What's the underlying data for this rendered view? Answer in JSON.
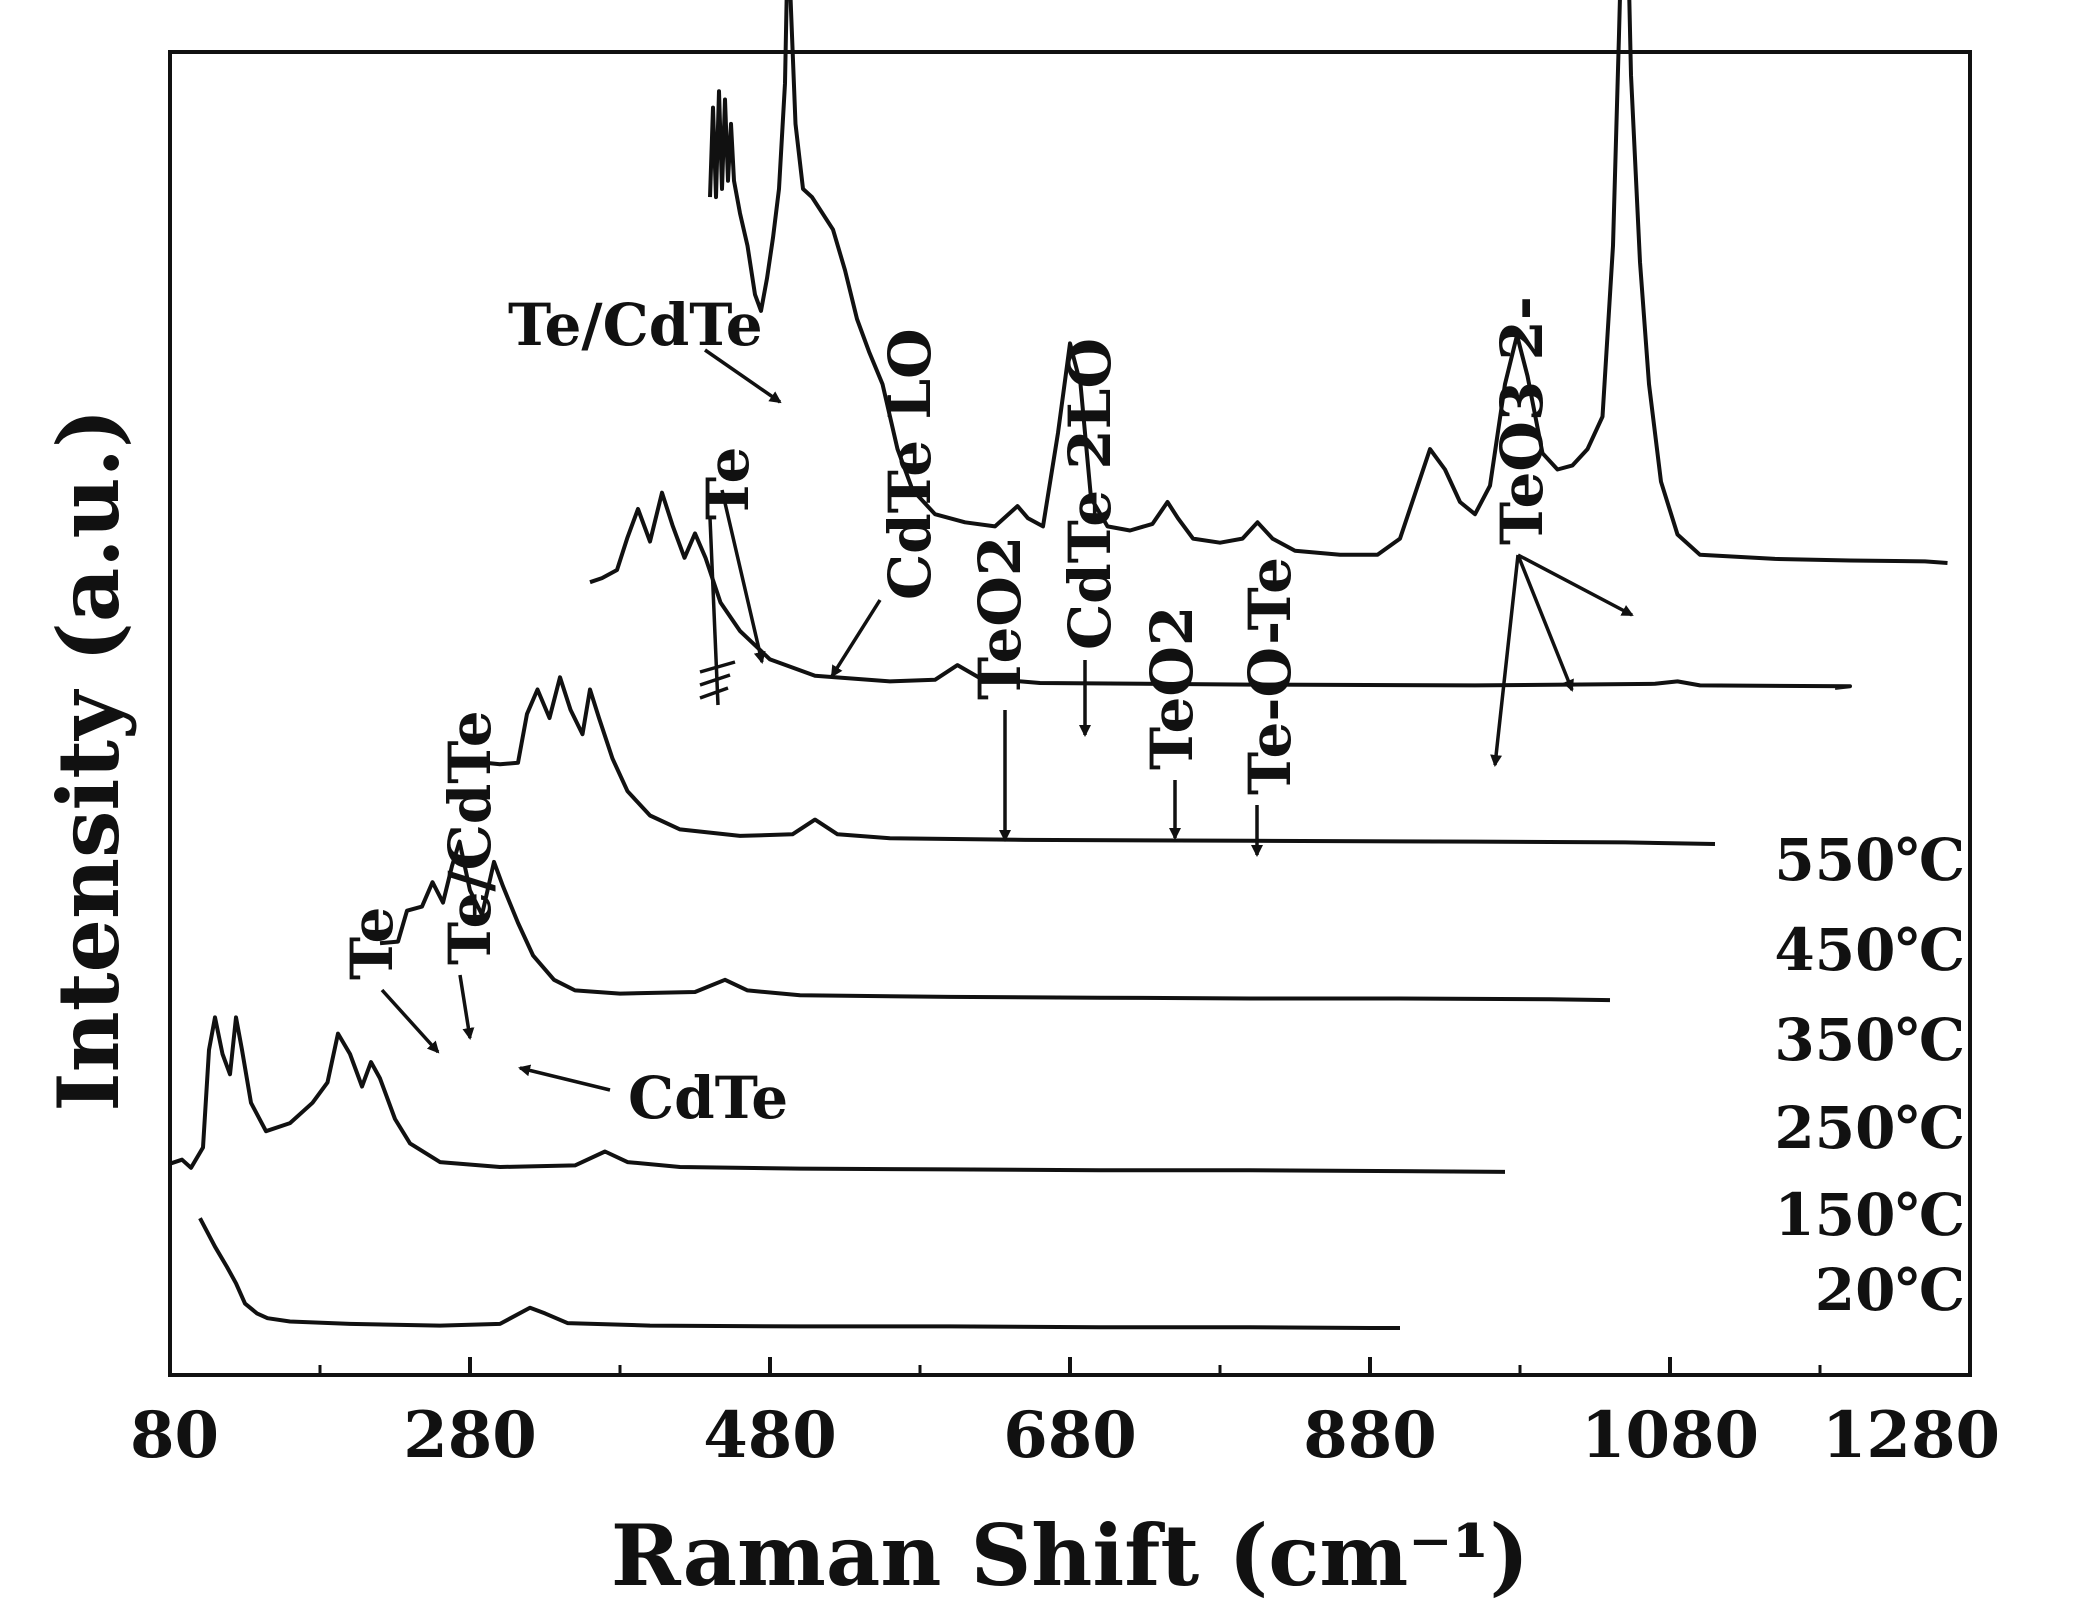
{
  "chart_data": {
    "type": "line",
    "xlabel": "Raman Shift (cm⁻¹)",
    "ylabel": "Intensity (a.u.)",
    "xlim": [
      80,
      1280
    ],
    "x_ticks": [
      80,
      280,
      480,
      680,
      880,
      1080,
      1280
    ],
    "y_ticks": "none",
    "grid": false,
    "legend": "none (series labelled at right end of each trace)",
    "series": [
      {
        "name": "20℃",
        "offset": 0,
        "points": [
          [
            100,
            1.35
          ],
          [
            110,
            1.0
          ],
          [
            118,
            0.75
          ],
          [
            124,
            0.55
          ],
          [
            130,
            0.3
          ],
          [
            138,
            0.18
          ],
          [
            145,
            0.12
          ],
          [
            160,
            0.08
          ],
          [
            200,
            0.05
          ],
          [
            260,
            0.03
          ],
          [
            300,
            0.05
          ],
          [
            320,
            0.25
          ],
          [
            330,
            0.18
          ],
          [
            345,
            0.06
          ],
          [
            400,
            0.03
          ],
          [
            500,
            0.02
          ],
          [
            600,
            0.02
          ],
          [
            700,
            0.01
          ],
          [
            800,
            0.01
          ],
          [
            880,
            0.0
          ],
          [
            900,
            0.0
          ]
        ]
      },
      {
        "name": "150℃",
        "offset": 1.0,
        "points": [
          [
            80,
            0.1
          ],
          [
            88,
            0.15
          ],
          [
            94,
            0.05
          ],
          [
            102,
            0.3
          ],
          [
            106,
            1.5
          ],
          [
            110,
            1.9
          ],
          [
            115,
            1.45
          ],
          [
            120,
            1.2
          ],
          [
            124,
            1.9
          ],
          [
            128,
            1.5
          ],
          [
            134,
            0.85
          ],
          [
            144,
            0.5
          ],
          [
            160,
            0.6
          ],
          [
            175,
            0.85
          ],
          [
            185,
            1.1
          ],
          [
            192,
            1.7
          ],
          [
            200,
            1.45
          ],
          [
            208,
            1.05
          ],
          [
            214,
            1.35
          ],
          [
            220,
            1.15
          ],
          [
            230,
            0.65
          ],
          [
            240,
            0.35
          ],
          [
            260,
            0.12
          ],
          [
            300,
            0.06
          ],
          [
            350,
            0.08
          ],
          [
            370,
            0.25
          ],
          [
            385,
            0.12
          ],
          [
            420,
            0.06
          ],
          [
            500,
            0.04
          ],
          [
            600,
            0.03
          ],
          [
            700,
            0.02
          ],
          [
            800,
            0.02
          ],
          [
            900,
            0.01
          ],
          [
            970,
            0.0
          ]
        ]
      },
      {
        "name": "250℃",
        "offset": 2.1,
        "points": [
          [
            220,
            0.7
          ],
          [
            232,
            0.72
          ],
          [
            238,
            1.1
          ],
          [
            248,
            1.15
          ],
          [
            255,
            1.45
          ],
          [
            262,
            1.2
          ],
          [
            268,
            1.65
          ],
          [
            273,
            1.95
          ],
          [
            280,
            1.35
          ],
          [
            288,
            1.05
          ],
          [
            296,
            1.7
          ],
          [
            302,
            1.4
          ],
          [
            312,
            0.95
          ],
          [
            322,
            0.55
          ],
          [
            336,
            0.25
          ],
          [
            350,
            0.12
          ],
          [
            380,
            0.08
          ],
          [
            430,
            0.1
          ],
          [
            450,
            0.25
          ],
          [
            465,
            0.12
          ],
          [
            500,
            0.06
          ],
          [
            600,
            0.04
          ],
          [
            700,
            0.03
          ],
          [
            800,
            0.02
          ],
          [
            900,
            0.02
          ],
          [
            1000,
            0.01
          ],
          [
            1040,
            0.0
          ]
        ]
      },
      {
        "name": "350℃",
        "offset": 3.1,
        "points": [
          [
            290,
            1.0
          ],
          [
            300,
            0.98
          ],
          [
            312,
            1.0
          ],
          [
            318,
            1.6
          ],
          [
            325,
            1.9
          ],
          [
            333,
            1.55
          ],
          [
            340,
            2.05
          ],
          [
            347,
            1.65
          ],
          [
            355,
            1.35
          ],
          [
            360,
            1.9
          ],
          [
            366,
            1.55
          ],
          [
            375,
            1.05
          ],
          [
            385,
            0.65
          ],
          [
            400,
            0.35
          ],
          [
            420,
            0.18
          ],
          [
            460,
            0.1
          ],
          [
            495,
            0.12
          ],
          [
            510,
            0.3
          ],
          [
            525,
            0.12
          ],
          [
            560,
            0.07
          ],
          [
            650,
            0.05
          ],
          [
            800,
            0.04
          ],
          [
            950,
            0.03
          ],
          [
            1050,
            0.02
          ],
          [
            1110,
            0.0
          ]
        ]
      },
      {
        "name": "450℃",
        "offset": 4.1,
        "points": [
          [
            360,
            1.3
          ],
          [
            368,
            1.35
          ],
          [
            378,
            1.45
          ],
          [
            385,
            1.85
          ],
          [
            392,
            2.2
          ],
          [
            400,
            1.8
          ],
          [
            408,
            2.4
          ],
          [
            415,
            2.0
          ],
          [
            423,
            1.6
          ],
          [
            430,
            1.9
          ],
          [
            437,
            1.6
          ],
          [
            447,
            1.05
          ],
          [
            460,
            0.7
          ],
          [
            480,
            0.35
          ],
          [
            510,
            0.15
          ],
          [
            560,
            0.08
          ],
          [
            590,
            0.1
          ],
          [
            605,
            0.28
          ],
          [
            620,
            0.12
          ],
          [
            660,
            0.06
          ],
          [
            800,
            0.04
          ],
          [
            950,
            0.03
          ],
          [
            1070,
            0.05
          ],
          [
            1085,
            0.08
          ],
          [
            1100,
            0.03
          ],
          [
            1200,
            0.02
          ],
          [
            1190,
            0.0
          ]
        ]
      },
      {
        "name": "550℃",
        "offset": 4.9,
        "points": [
          [
            440,
            4.5
          ],
          [
            442,
            5.6
          ],
          [
            444,
            4.5
          ],
          [
            446,
            5.8
          ],
          [
            448,
            4.6
          ],
          [
            450,
            5.7
          ],
          [
            452,
            4.7
          ],
          [
            454,
            5.4
          ],
          [
            456,
            4.7
          ],
          [
            460,
            4.3
          ],
          [
            465,
            3.9
          ],
          [
            470,
            3.3
          ],
          [
            474,
            3.1
          ],
          [
            478,
            3.5
          ],
          [
            482,
            4.0
          ],
          [
            486,
            4.6
          ],
          [
            490,
            5.9
          ],
          [
            492,
            7.8
          ],
          [
            494,
            6.8
          ],
          [
            497,
            5.4
          ],
          [
            502,
            4.6
          ],
          [
            508,
            4.5
          ],
          [
            515,
            4.3
          ],
          [
            522,
            4.1
          ],
          [
            530,
            3.6
          ],
          [
            538,
            3.0
          ],
          [
            546,
            2.6
          ],
          [
            555,
            2.2
          ],
          [
            565,
            1.4
          ],
          [
            575,
            0.9
          ],
          [
            590,
            0.6
          ],
          [
            610,
            0.5
          ],
          [
            630,
            0.45
          ],
          [
            645,
            0.7
          ],
          [
            652,
            0.55
          ],
          [
            662,
            0.45
          ],
          [
            672,
            1.6
          ],
          [
            680,
            2.7
          ],
          [
            687,
            2.2
          ],
          [
            694,
            0.8
          ],
          [
            705,
            0.45
          ],
          [
            720,
            0.4
          ],
          [
            735,
            0.48
          ],
          [
            745,
            0.75
          ],
          [
            752,
            0.55
          ],
          [
            762,
            0.3
          ],
          [
            780,
            0.25
          ],
          [
            795,
            0.3
          ],
          [
            805,
            0.5
          ],
          [
            815,
            0.3
          ],
          [
            830,
            0.15
          ],
          [
            860,
            0.1
          ],
          [
            885,
            0.1
          ],
          [
            900,
            0.3
          ],
          [
            910,
            0.85
          ],
          [
            920,
            1.4
          ],
          [
            930,
            1.15
          ],
          [
            940,
            0.75
          ],
          [
            950,
            0.6
          ],
          [
            960,
            0.95
          ],
          [
            970,
            2.2
          ],
          [
            978,
            2.8
          ],
          [
            985,
            2.3
          ],
          [
            995,
            1.35
          ],
          [
            1005,
            1.15
          ],
          [
            1015,
            1.2
          ],
          [
            1025,
            1.4
          ],
          [
            1035,
            1.8
          ],
          [
            1042,
            3.9
          ],
          [
            1046,
            6.5
          ],
          [
            1050,
            9.3
          ],
          [
            1054,
            6.0
          ],
          [
            1060,
            3.7
          ],
          [
            1066,
            2.2
          ],
          [
            1074,
            1.0
          ],
          [
            1085,
            0.35
          ],
          [
            1100,
            0.1
          ],
          [
            1150,
            0.05
          ],
          [
            1200,
            0.03
          ],
          [
            1250,
            0.02
          ],
          [
            1265,
            0.0
          ]
        ]
      }
    ],
    "annotations": [
      {
        "text": "Te",
        "series": "250℃"
      },
      {
        "text": "Te/CdTe",
        "series": "250℃"
      },
      {
        "text": "CdTe",
        "series": "250℃"
      },
      {
        "text": "Te/CdTe",
        "series": "550℃"
      },
      {
        "text": "Te",
        "series": "550℃"
      },
      {
        "text": "CdTe LO",
        "series": "550℃"
      },
      {
        "text": "TeO2",
        "series": "550℃"
      },
      {
        "text": "CdTe 2LO",
        "series": "550℃"
      },
      {
        "text": "TeO2",
        "series": "550℃"
      },
      {
        "text": "Te-O-Te",
        "series": "550℃"
      },
      {
        "text": "TeO3 2-",
        "series": "550℃"
      }
    ]
  }
}
